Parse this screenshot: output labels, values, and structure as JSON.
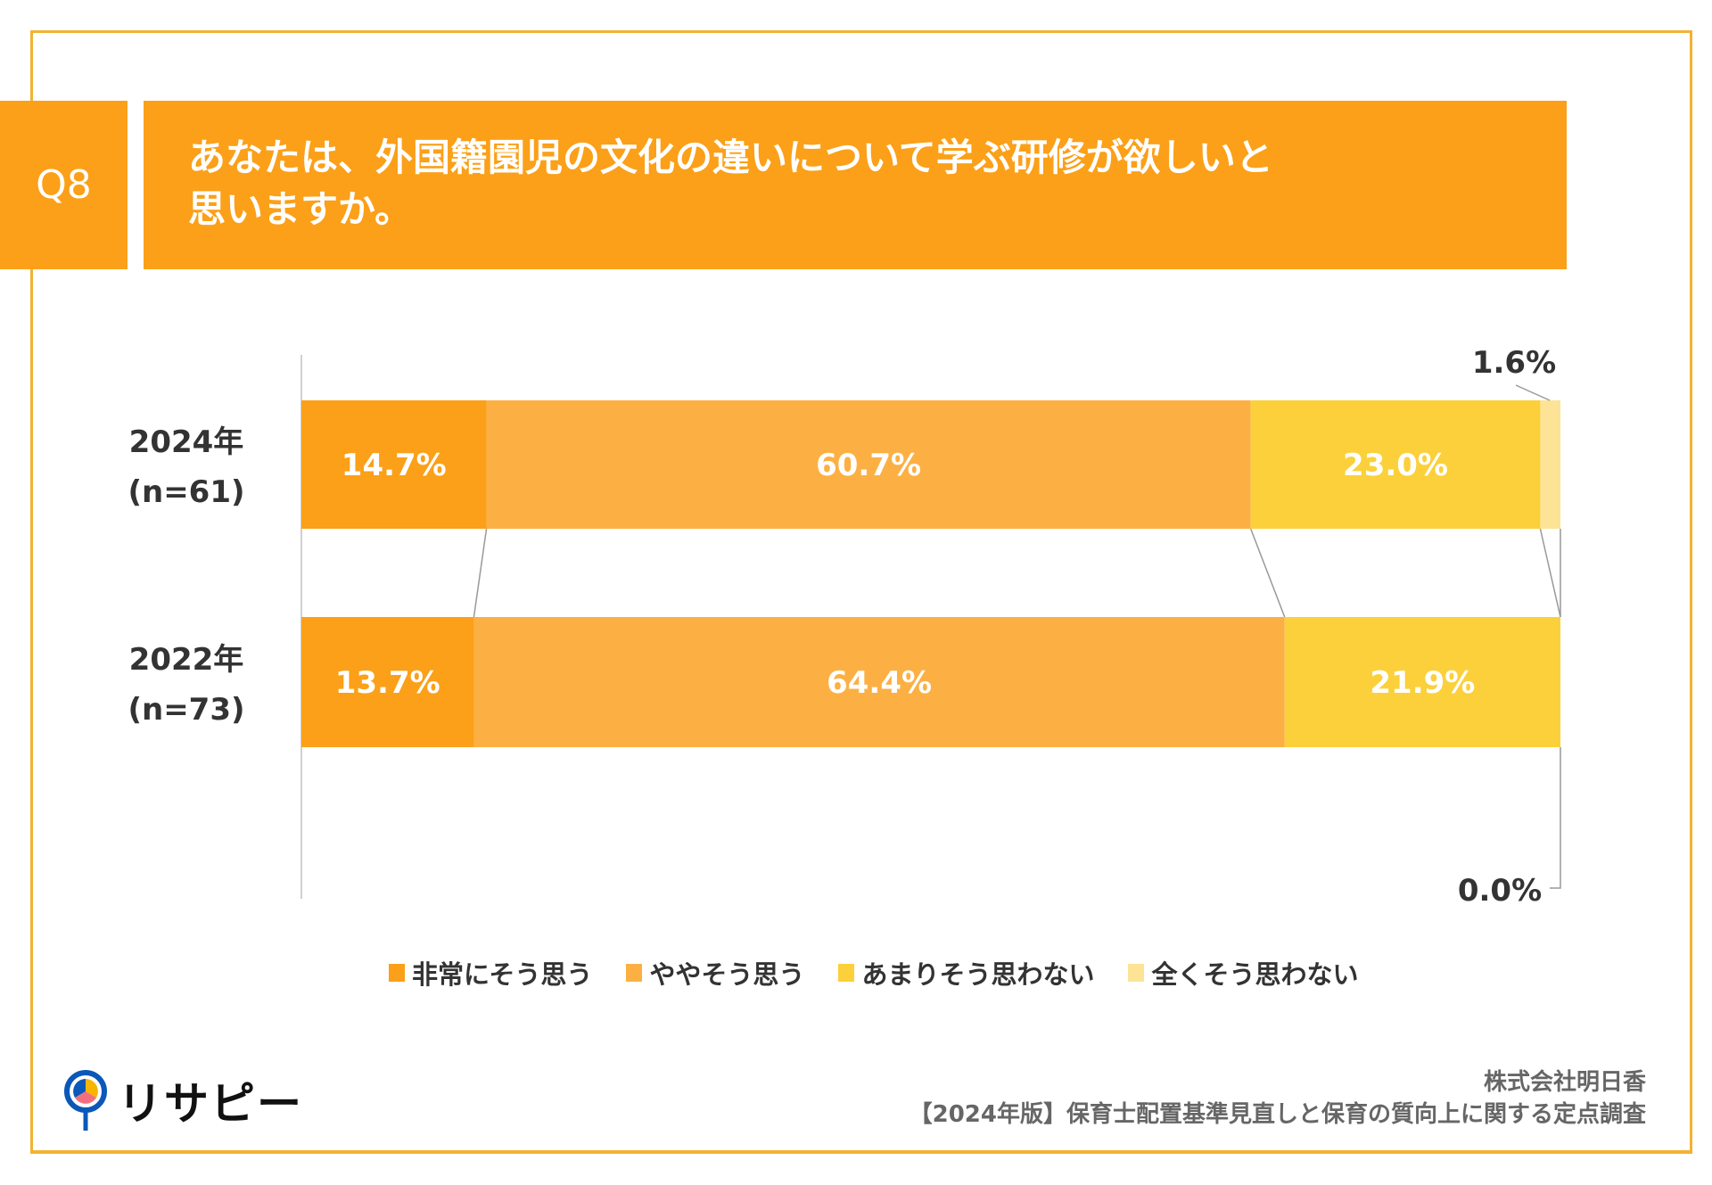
{
  "header": {
    "question_number": "Q8",
    "title_line1": "あなたは、外国籍園児の文化の違いについて学ぶ研修が欲しいと",
    "title_line2": "思いますか。",
    "accent_color": "#FBA018"
  },
  "chart_data": {
    "type": "bar",
    "orientation": "horizontal",
    "stacked": true,
    "categories": [
      {
        "label": "2024年",
        "sublabel": "(n=61)"
      },
      {
        "label": "2022年",
        "sublabel": "(n=73)"
      }
    ],
    "series": [
      {
        "name": "非常にそう思う",
        "color": "#FBA018",
        "values": [
          14.7,
          13.7
        ],
        "labels": [
          "14.7%",
          "13.7%"
        ]
      },
      {
        "name": "ややそう思う",
        "color": "#FCB043",
        "values": [
          60.7,
          64.4
        ],
        "labels": [
          "60.7%",
          "64.4%"
        ]
      },
      {
        "name": "あまりそう思わない",
        "color": "#FCD03A",
        "values": [
          23.0,
          21.9
        ],
        "labels": [
          "23.0%",
          "21.9%"
        ]
      },
      {
        "name": "全くそう思わない",
        "color": "#FDE396",
        "values": [
          1.6,
          0.0
        ],
        "labels": [
          "1.6%",
          "0.0%"
        ]
      }
    ],
    "xlim": [
      0,
      100
    ],
    "legend_position": "bottom",
    "series_connector_lines": true,
    "grid": false
  },
  "footer": {
    "company": "株式会社明日香",
    "survey": "【2024年版】保育士配置基準見直しと保育の質向上に関する定点調査",
    "logo_text": "リサピー"
  }
}
